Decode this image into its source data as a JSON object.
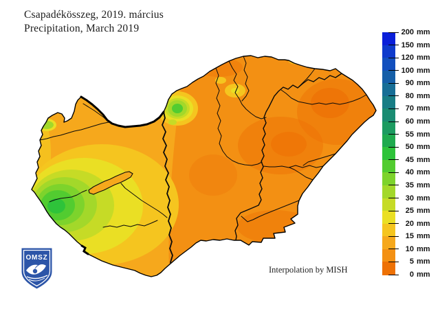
{
  "header": {
    "title_hu": "Csapadékösszeg, 2019. március",
    "title_en": "Precipitation, March 2019"
  },
  "map": {
    "country": "Hungary",
    "annotation": "Interpolation by MISH"
  },
  "logo": {
    "acronym": "OMSZ",
    "shield_color": "#2C55A8"
  },
  "legend": {
    "unit": "mm",
    "values": [
      "200",
      "150",
      "120",
      "100",
      "90",
      "80",
      "70",
      "60",
      "55",
      "50",
      "45",
      "40",
      "35",
      "30",
      "25",
      "20",
      "15",
      "10",
      "5",
      "0"
    ],
    "colors": [
      "#0A1FD9",
      "#0E3ACC",
      "#124FBE",
      "#155FA8",
      "#176E96",
      "#187D85",
      "#1A8C72",
      "#1C9B60",
      "#1FAA4E",
      "#2EC33A",
      "#52CC30",
      "#7DD32C",
      "#A3D82A",
      "#C6DB26",
      "#EADF24",
      "#F5C51F",
      "#F6A81C",
      "#F39013",
      "#EE7105"
    ]
  },
  "palette": {
    "p0_5": "#EE7105",
    "p5_10": "#F39013",
    "p10_15": "#F6A81C",
    "p15_20": "#F5C51F",
    "p20_25": "#EADF24",
    "p25_30": "#C6DB26",
    "p30_35": "#A3D82A",
    "p35_40": "#7DD32C",
    "p40_45": "#52CC30",
    "p45_50": "#2EC33A"
  }
}
